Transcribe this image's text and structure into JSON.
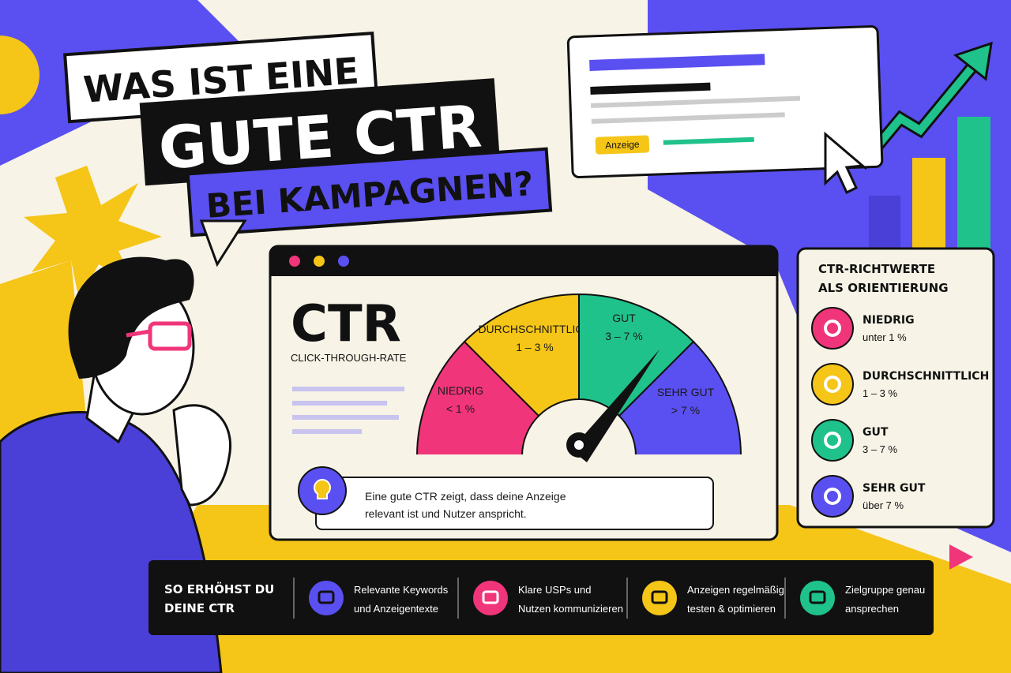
{
  "headline": {
    "line1": "WAS IST EINE",
    "line2": "GUTE CTR",
    "line3": "BEI KAMPAGNEN?"
  },
  "ad_preview": {
    "badge": "Anzeige"
  },
  "gauge_panel": {
    "title": "CTR",
    "subtitle": "CLICK-THROUGH-RATE",
    "segments": [
      {
        "label": "NIEDRIG",
        "range": "< 1 %"
      },
      {
        "label": "DURCHSCHNITTLICH",
        "range": "1 – 3 %"
      },
      {
        "label": "GUT",
        "range": "3 – 7 %"
      },
      {
        "label": "SEHR GUT",
        "range": "> 7 %"
      }
    ],
    "tip": [
      "Eine gute CTR zeigt, dass deine Anzeige",
      "relevant ist und Nutzer anspricht."
    ]
  },
  "benchmarks": {
    "title": [
      "CTR-RICHTWERTE",
      "ALS ORIENTIERUNG"
    ],
    "items": [
      {
        "label": "NIEDRIG",
        "range": "unter 1 %"
      },
      {
        "label": "DURCHSCHNITTLICH",
        "range": "1 – 3 %"
      },
      {
        "label": "GUT",
        "range": "3 – 7 %"
      },
      {
        "label": "SEHR GUT",
        "range": "über 7 %"
      }
    ]
  },
  "tips": {
    "title": [
      "SO ERHÖHST DU",
      "DEINE CTR"
    ],
    "items": [
      [
        "Relevante Keywords",
        "und Anzeigentexte"
      ],
      [
        "Klare USPs und",
        "Nutzen kommunizieren"
      ],
      [
        "Anzeigen regelmäßig",
        "testen & optimieren"
      ],
      [
        "Zielgruppe genau",
        "ansprechen"
      ]
    ]
  }
}
